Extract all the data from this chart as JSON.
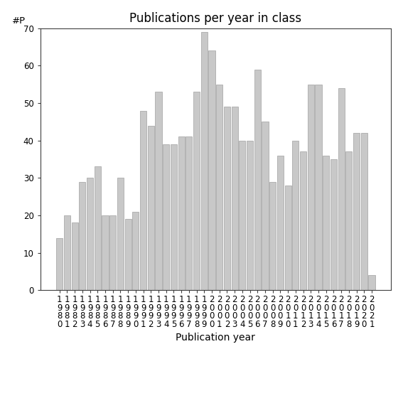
{
  "title": "Publications per year in class",
  "xlabel": "Publication year",
  "ylabel_text": "#P",
  "bar_color": "#c8c8c8",
  "edge_color": "#a0a0a0",
  "years": [
    1980,
    1981,
    1982,
    1983,
    1984,
    1985,
    1986,
    1987,
    1988,
    1989,
    1990,
    1991,
    1992,
    1993,
    1994,
    1995,
    1996,
    1997,
    1998,
    1999,
    2000,
    2001,
    2002,
    2003,
    2004,
    2005,
    2006,
    2007,
    2008,
    2009,
    2010,
    2011,
    2012,
    2013,
    2014,
    2015,
    2016,
    2017,
    2018,
    2019,
    2020,
    2021
  ],
  "values": [
    14,
    20,
    18,
    29,
    30,
    33,
    20,
    20,
    30,
    19,
    21,
    48,
    44,
    53,
    39,
    39,
    41,
    41,
    53,
    69,
    64,
    55,
    49,
    49,
    40,
    40,
    59,
    45,
    29,
    36,
    28,
    40,
    37,
    55,
    55,
    36,
    35,
    54,
    37,
    42,
    42,
    4
  ],
  "ylim": [
    0,
    70
  ],
  "yticks": [
    0,
    10,
    20,
    30,
    40,
    50,
    60,
    70
  ],
  "background_color": "#ffffff",
  "title_fontsize": 12,
  "axis_label_fontsize": 10,
  "tick_fontsize": 8.5
}
